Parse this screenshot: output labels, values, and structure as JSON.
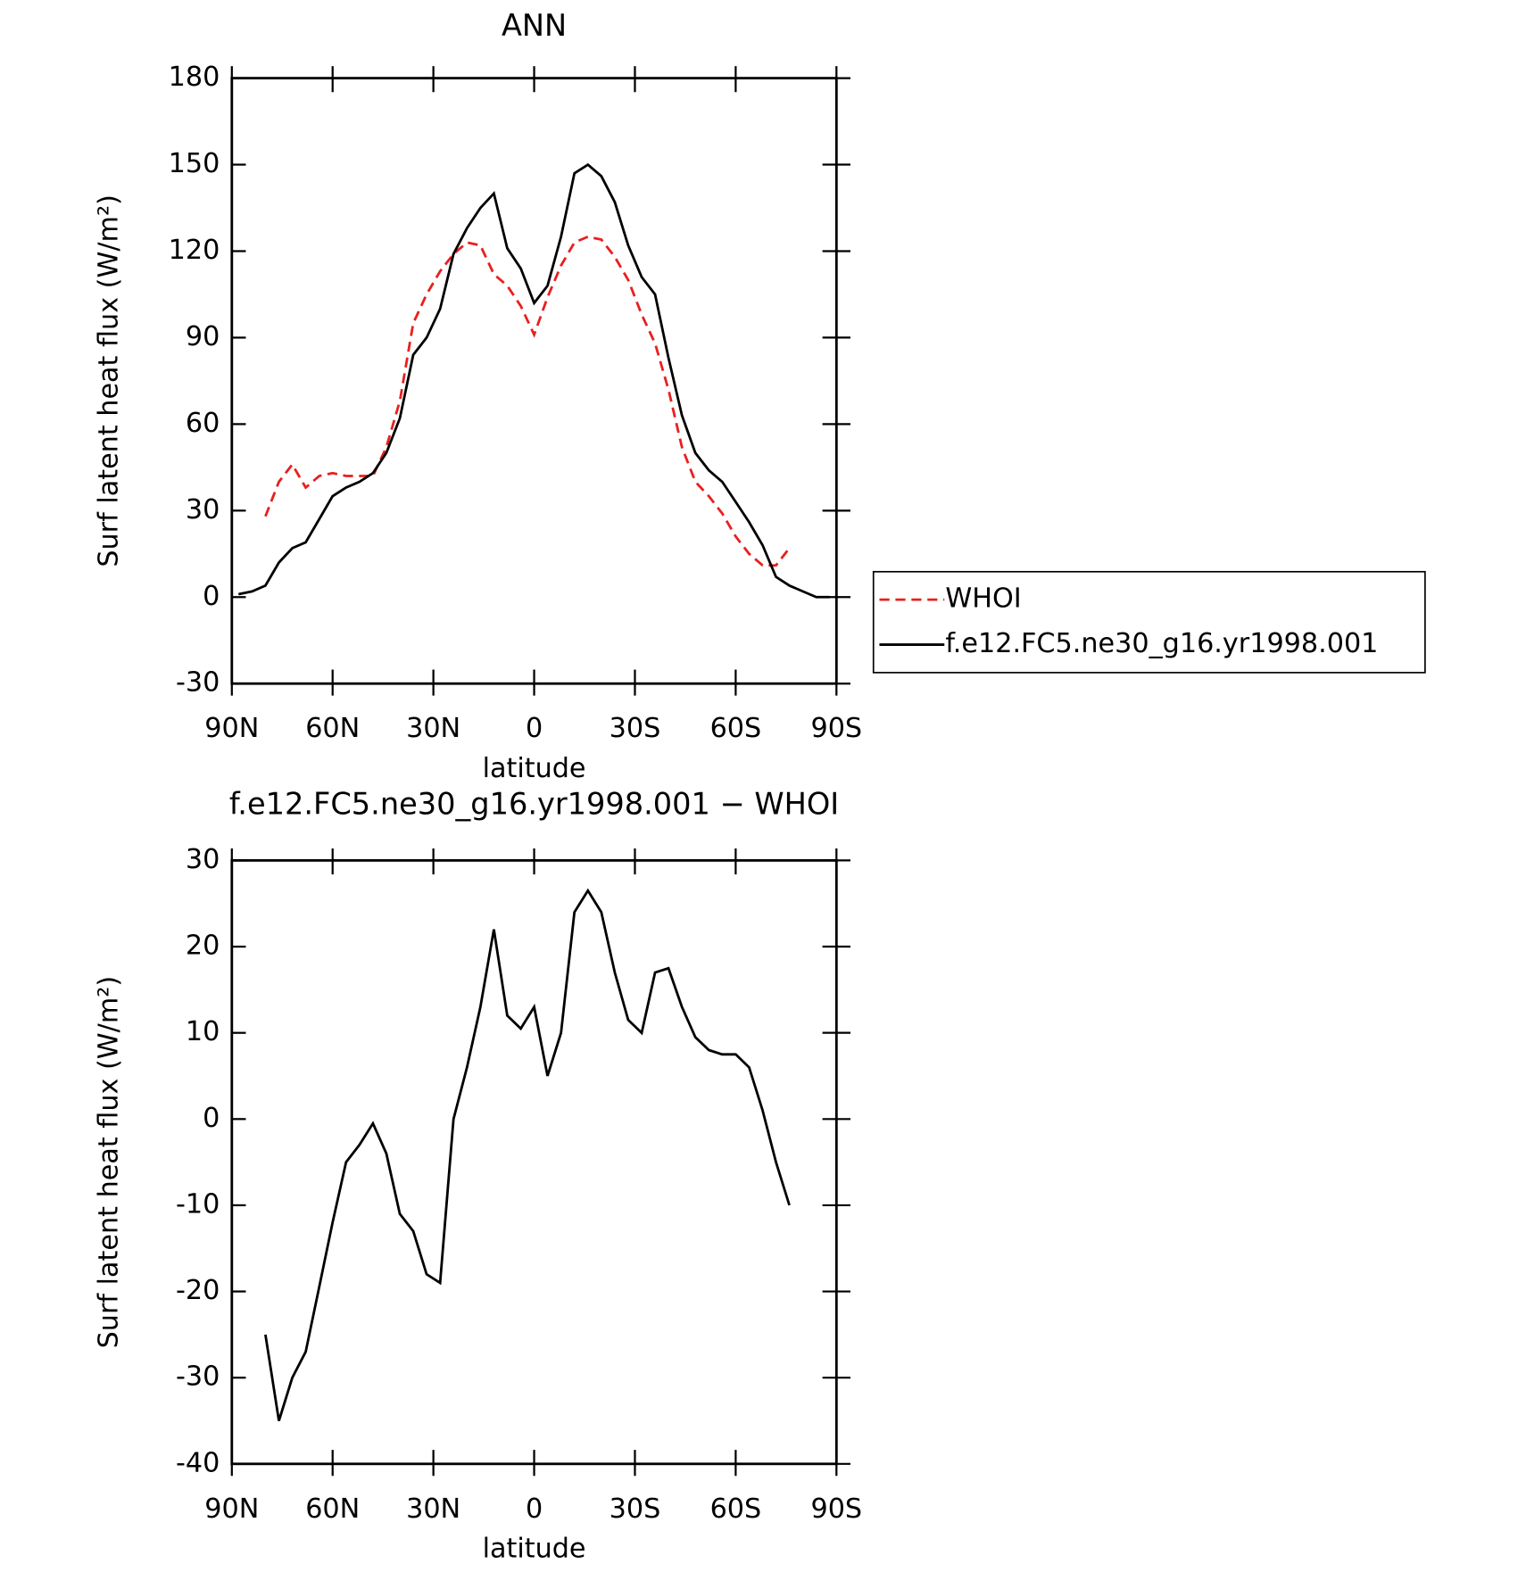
{
  "chart_data": [
    {
      "type": "line",
      "title": "ANN",
      "xlabel": "latitude",
      "ylabel": "Surf latent heat flux (W/m²)",
      "x": [
        88,
        84,
        80,
        76,
        72,
        68,
        64,
        60,
        56,
        52,
        48,
        44,
        40,
        36,
        32,
        28,
        24,
        20,
        16,
        12,
        8,
        4,
        0,
        -4,
        -8,
        -12,
        -16,
        -20,
        -24,
        -28,
        -32,
        -36,
        -40,
        -44,
        -48,
        -52,
        -56,
        -60,
        -64,
        -68,
        -72,
        -76,
        -80,
        -84,
        -88
      ],
      "xlim": [
        90,
        -90
      ],
      "xticks": [
        {
          "value": 90,
          "label": "90N"
        },
        {
          "value": 60,
          "label": "60N"
        },
        {
          "value": 30,
          "label": "30N"
        },
        0,
        {
          "value": -30,
          "label": "30S"
        },
        {
          "value": -60,
          "label": "60S"
        },
        {
          "value": -90,
          "label": "90S"
        }
      ],
      "ylim": [
        -30,
        180
      ],
      "yticks": [
        -30,
        0,
        30,
        60,
        90,
        120,
        150,
        180
      ],
      "series": [
        {
          "name": "WHOI",
          "color": "#e8201f",
          "style": "dashed",
          "values": [
            null,
            null,
            28,
            40,
            46,
            38,
            42,
            43,
            42,
            42,
            42,
            52,
            68,
            95,
            105,
            113,
            119,
            123,
            122,
            112,
            108,
            101,
            91,
            104,
            115,
            123,
            125,
            124,
            118,
            110,
            98,
            88,
            72,
            52,
            40,
            35,
            29,
            21,
            15,
            11,
            11,
            17,
            null,
            null,
            null
          ]
        },
        {
          "name": "f.e12.FC5.ne30_g16.yr1998.001",
          "color": "#000000",
          "style": "solid",
          "values": [
            1,
            2,
            4,
            12,
            17,
            19,
            27,
            35,
            38,
            40,
            43,
            50,
            62,
            84,
            90,
            100,
            119,
            128,
            135,
            140,
            121,
            114,
            102,
            108,
            125,
            147,
            150,
            146,
            137,
            122,
            111,
            105,
            83,
            63,
            50,
            44,
            40,
            33,
            26,
            18,
            7,
            4,
            2,
            0,
            0
          ]
        }
      ]
    },
    {
      "type": "line",
      "title": "f.e12.FC5.ne30_g16.yr1998.001 − WHOI",
      "xlabel": "latitude",
      "ylabel": "Surf latent heat flux (W/m²)",
      "x": [
        80,
        76,
        72,
        68,
        64,
        60,
        56,
        52,
        48,
        44,
        40,
        36,
        32,
        28,
        24,
        20,
        16,
        12,
        8,
        4,
        0,
        -4,
        -8,
        -12,
        -16,
        -20,
        -24,
        -28,
        -32,
        -36,
        -40,
        -44,
        -48,
        -52,
        -56,
        -60,
        -64,
        -68,
        -72,
        -76
      ],
      "xlim": [
        90,
        -90
      ],
      "xticks": [
        {
          "value": 90,
          "label": "90N"
        },
        {
          "value": 60,
          "label": "60N"
        },
        {
          "value": 30,
          "label": "30N"
        },
        0,
        {
          "value": -30,
          "label": "30S"
        },
        {
          "value": -60,
          "label": "60S"
        },
        {
          "value": -90,
          "label": "90S"
        }
      ],
      "ylim": [
        -40,
        30
      ],
      "yticks": [
        -40,
        -30,
        -20,
        -10,
        0,
        10,
        20,
        30
      ],
      "series": [
        {
          "color": "#000000",
          "style": "solid",
          "values": [
            -25,
            -35,
            -30,
            -27,
            -19.5,
            -12,
            -5,
            -3,
            -0.5,
            -4,
            -11,
            -13,
            -18,
            -19,
            0,
            6,
            13,
            22,
            12,
            10.5,
            13,
            5,
            10,
            24,
            26.5,
            24,
            17,
            11.5,
            10,
            17,
            17.5,
            13,
            9.5,
            8,
            7.5,
            7.5,
            6,
            1,
            -5,
            -10
          ]
        }
      ]
    }
  ]
}
